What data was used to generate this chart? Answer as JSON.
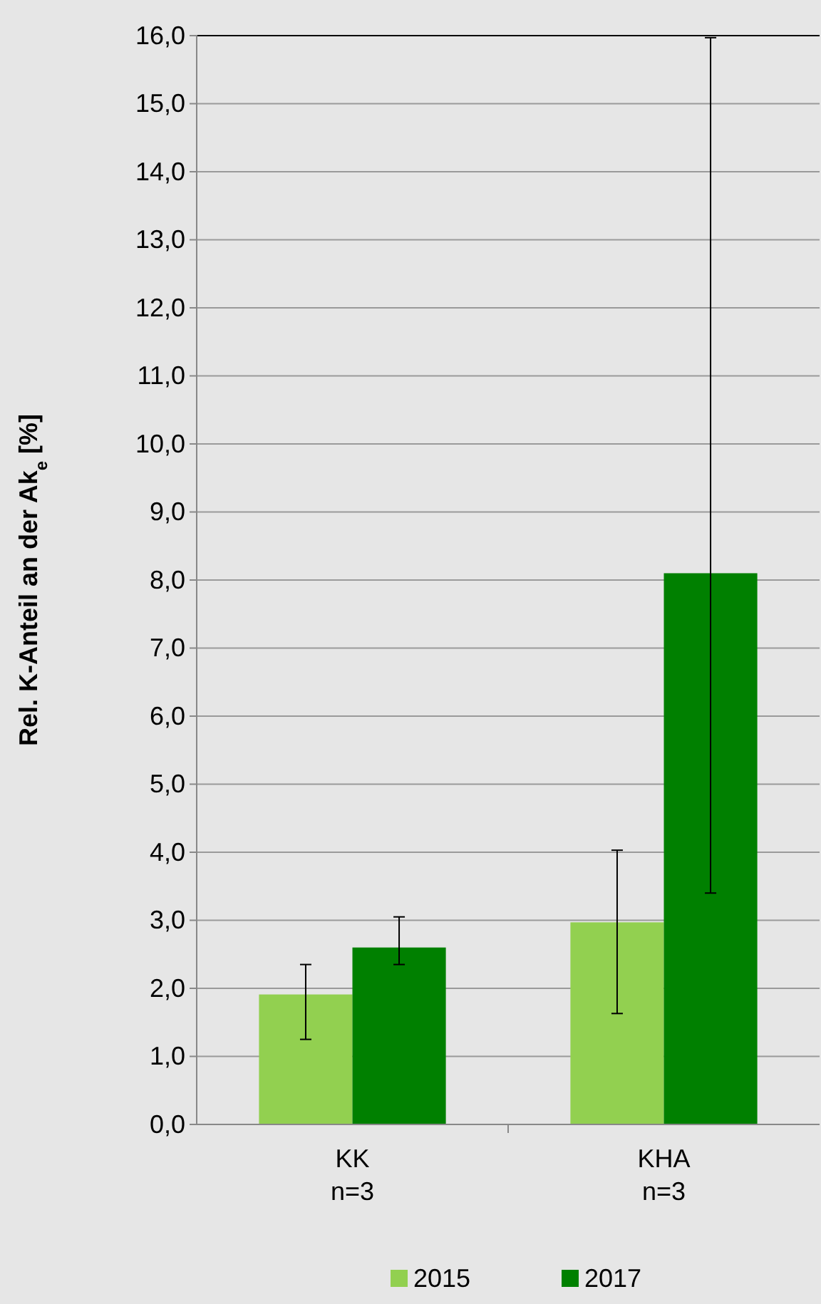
{
  "chart_data": {
    "type": "bar",
    "ylabel": "Rel. K-Anteil an der Ak$_{e}$ [%]",
    "categories": [
      "KK\nn=3",
      "KHA\nn=3"
    ],
    "series": [
      {
        "name": "2015",
        "color": "#92d050",
        "values": [
          1.91,
          2.97
        ],
        "errors": [
          [
            1.25,
            2.35
          ],
          [
            1.63,
            4.03
          ]
        ]
      },
      {
        "name": "2017",
        "color": "#008000",
        "values": [
          2.6,
          8.1
        ],
        "errors": [
          [
            2.35,
            3.05
          ],
          [
            3.4,
            15.97
          ]
        ]
      }
    ],
    "ylim": [
      0,
      16
    ],
    "yticks": [
      {
        "value": 0,
        "label": "0,0"
      },
      {
        "value": 1,
        "label": "1,0"
      },
      {
        "value": 2,
        "label": "2,0"
      },
      {
        "value": 3,
        "label": "3,0"
      },
      {
        "value": 4,
        "label": "4,0"
      },
      {
        "value": 5,
        "label": "5,0"
      },
      {
        "value": 6,
        "label": "6,0"
      },
      {
        "value": 7,
        "label": "7,0"
      },
      {
        "value": 8,
        "label": "8,0"
      },
      {
        "value": 9,
        "label": "9,0"
      },
      {
        "value": 10,
        "label": "10,0"
      },
      {
        "value": 11,
        "label": "11,0"
      },
      {
        "value": 12,
        "label": "12,0"
      },
      {
        "value": 13,
        "label": "13,0"
      },
      {
        "value": 14,
        "label": "14,0"
      },
      {
        "value": 15,
        "label": "15,0"
      },
      {
        "value": 16,
        "label": "16,0"
      }
    ],
    "grid": "y",
    "legend": "bottom"
  }
}
